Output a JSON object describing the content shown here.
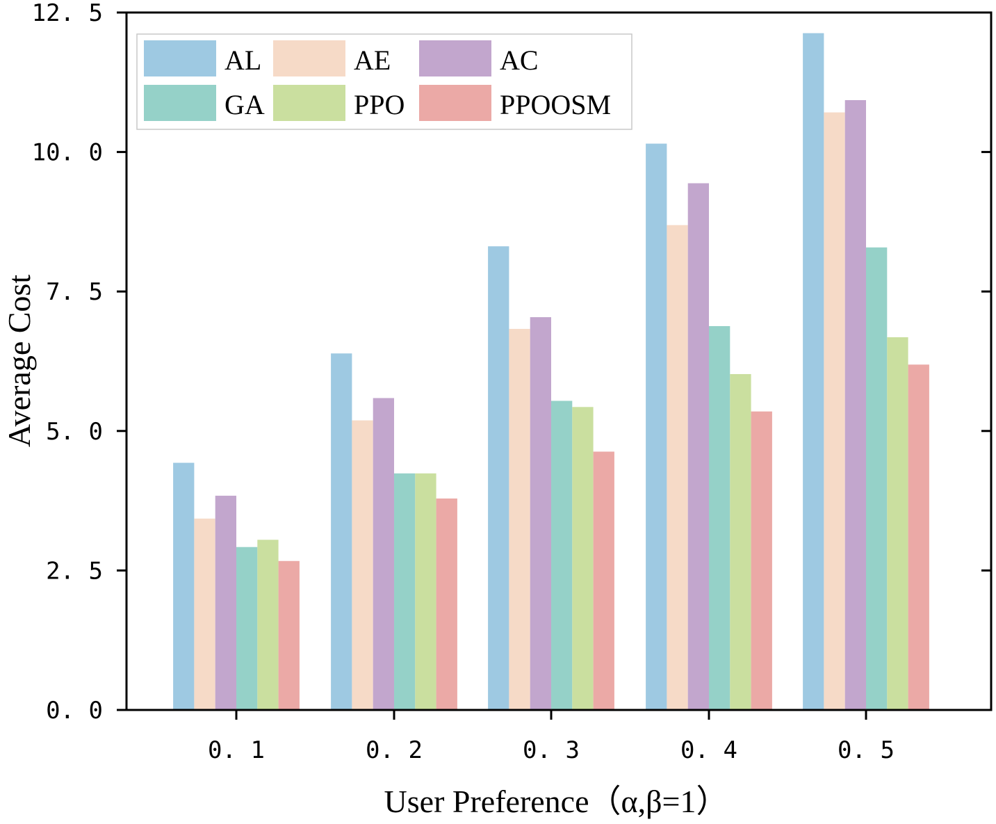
{
  "chart_data": {
    "type": "bar",
    "title": "",
    "xlabel": "User Preference（α,β=1）",
    "ylabel": "Average Cost",
    "categories": [
      "0. 1",
      "0. 2",
      "0. 3",
      "0. 4",
      "0. 5"
    ],
    "ylim": [
      0,
      12.5
    ],
    "yticks": [
      0,
      2.5,
      5,
      7.5,
      10,
      12.5
    ],
    "ytick_labels": [
      "0. 0",
      "2. 5",
      "5. 0",
      "7. 5",
      "10. 0",
      "12. 5"
    ],
    "grid": false,
    "legend_position": "top-left",
    "series": [
      {
        "name": "AL",
        "color": "#9ec9e2",
        "values": [
          4.43,
          6.39,
          8.31,
          10.15,
          12.13
        ]
      },
      {
        "name": "AE",
        "color": "#f6dac7",
        "values": [
          3.43,
          5.19,
          6.83,
          8.69,
          10.71
        ]
      },
      {
        "name": "AC",
        "color": "#c2a6cd",
        "values": [
          3.84,
          5.59,
          7.04,
          9.44,
          10.93
        ]
      },
      {
        "name": "GA",
        "color": "#95d1c8",
        "values": [
          2.92,
          4.24,
          5.54,
          6.88,
          8.29
        ]
      },
      {
        "name": "PPO",
        "color": "#cadf9f",
        "values": [
          3.05,
          4.24,
          5.43,
          6.02,
          6.68
        ]
      },
      {
        "name": "PPOOSM",
        "color": "#eba9a6",
        "values": [
          2.67,
          3.79,
          4.63,
          5.35,
          6.19
        ]
      }
    ]
  }
}
